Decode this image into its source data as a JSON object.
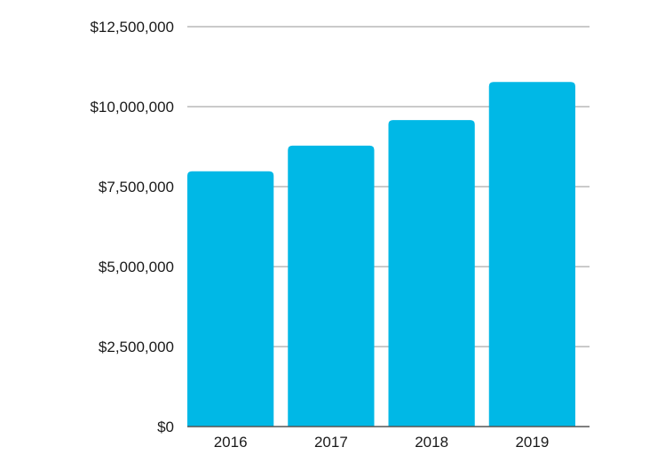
{
  "chart_data": {
    "type": "bar",
    "categories": [
      "2016",
      "2017",
      "2018",
      "2019"
    ],
    "values": [
      7980000,
      8780000,
      9580000,
      10770000
    ],
    "title": "",
    "xlabel": "",
    "ylabel": "",
    "ylim": [
      0,
      12500000
    ],
    "yticks": [
      0,
      2500000,
      5000000,
      7500000,
      10000000,
      12500000
    ],
    "ytick_labels": [
      "$0",
      "$2,500,000",
      "$5,000,000",
      "$7,500,000",
      "$10,000,000",
      "$12,500,000"
    ],
    "grid": true,
    "legend": "none",
    "bar_color": "#00b8e6"
  }
}
